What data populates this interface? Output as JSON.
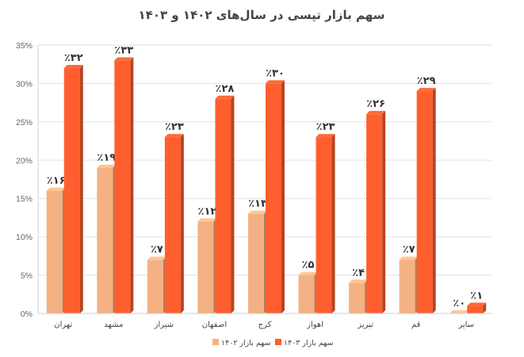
{
  "chart_data": {
    "type": "bar",
    "title": "سهم بازار تپسی در سال‌های ۱۴۰۲ و ۱۴۰۳",
    "categories": [
      "تهران",
      "مشهد",
      "شیراز",
      "اصفهان",
      "کرج",
      "اهواز",
      "تبریز",
      "قم",
      "سایر"
    ],
    "series": [
      {
        "name": "سهم بازار ۱۴۰۲",
        "color": "#F4B183",
        "values": [
          16,
          19,
          7,
          12,
          13,
          5,
          4,
          7,
          0
        ],
        "labels": [
          "٪۱۶",
          "٪۱۹",
          "٪۷",
          "٪۱۲",
          "٪۱۳",
          "٪۵",
          "٪۴",
          "٪۷",
          "٪۰"
        ]
      },
      {
        "name": "سهم بازار ۱۴۰۳",
        "color": "#FF5F2E",
        "values": [
          32,
          33,
          23,
          28,
          30,
          23,
          26,
          29,
          1
        ],
        "labels": [
          "٪۳۲",
          "٪۳۳",
          "٪۲۳",
          "٪۲۸",
          "٪۳۰",
          "٪۲۳",
          "٪۲۶",
          "٪۲۹",
          "٪۱"
        ]
      }
    ],
    "ylim": [
      0,
      35
    ],
    "yticks": [
      0,
      5,
      10,
      15,
      20,
      25,
      30,
      35
    ],
    "ytick_labels": [
      "0%",
      "5%",
      "10%",
      "15%",
      "20%",
      "25%",
      "30%",
      "35%"
    ],
    "grid": true,
    "legend_position": "bottom"
  }
}
